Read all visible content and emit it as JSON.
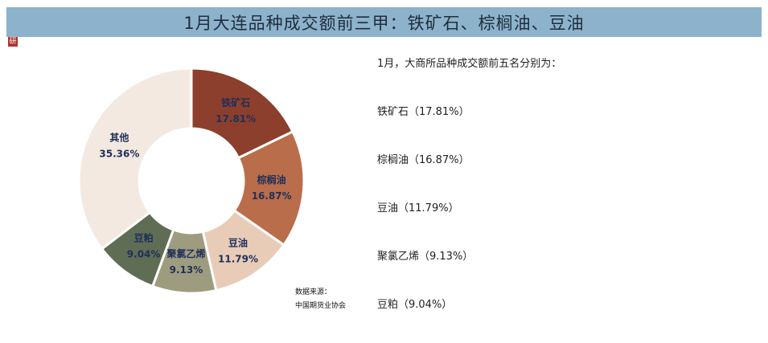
{
  "title": "1月大连品种成交额前三甲：铁矿石、棕榈油、豆油",
  "logo_text": "研",
  "summary": "1月，大商所品种成交额前五名分别为：",
  "ranking": [
    "铁矿石（17.81%）",
    "棕榈油（16.87%）",
    "豆油（11.79%）",
    "聚氯乙烯（9.13%）",
    "豆粕（9.04%）"
  ],
  "source_label": "数据来源：",
  "source_value": "中国期货业协会",
  "chart_data": {
    "type": "pie",
    "donut": true,
    "categories": [
      "铁矿石",
      "棕榈油",
      "豆油",
      "聚氯乙烯",
      "豆粕",
      "其他"
    ],
    "values": [
      17.81,
      16.87,
      11.79,
      9.13,
      9.04,
      35.36
    ],
    "value_labels": [
      "17.81%",
      "16.87%",
      "11.79%",
      "9.13%",
      "9.04%",
      "35.36%"
    ],
    "colors": [
      "#8c3f2c",
      "#b96d4b",
      "#e8ccb8",
      "#9e9c7f",
      "#606d55",
      "#f3e9e1"
    ],
    "start_angle_deg": 0,
    "direction": "clockwise"
  }
}
